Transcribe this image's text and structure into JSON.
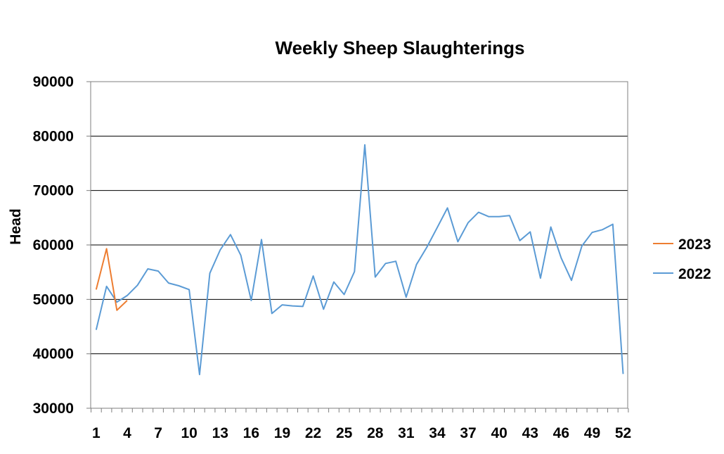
{
  "chart_data": {
    "type": "line",
    "title": "Weekly Sheep Slaughterings",
    "xlabel": "",
    "ylabel": "Head",
    "ylim": [
      30000,
      90000
    ],
    "yticks": [
      30000,
      40000,
      50000,
      60000,
      70000,
      80000,
      90000
    ],
    "xlim": [
      1,
      52
    ],
    "xticks": [
      1,
      4,
      7,
      10,
      13,
      16,
      19,
      22,
      25,
      28,
      31,
      34,
      37,
      40,
      43,
      46,
      49,
      52
    ],
    "grid": "horizontal",
    "legend_position": "right",
    "series": [
      {
        "name": "2023",
        "color": "#ED7D31",
        "x": [
          1,
          2,
          3,
          4
        ],
        "values": [
          51800,
          59300,
          48000,
          49800
        ]
      },
      {
        "name": "2022",
        "color": "#5B9BD5",
        "x": [
          1,
          2,
          3,
          4,
          5,
          6,
          7,
          8,
          9,
          10,
          11,
          12,
          13,
          14,
          15,
          16,
          17,
          18,
          19,
          20,
          21,
          22,
          23,
          24,
          25,
          26,
          27,
          28,
          29,
          30,
          31,
          32,
          33,
          34,
          35,
          36,
          37,
          38,
          39,
          40,
          41,
          42,
          43,
          44,
          45,
          46,
          47,
          48,
          49,
          50,
          51,
          52
        ],
        "values": [
          44400,
          52400,
          49500,
          50700,
          52600,
          55600,
          55200,
          53000,
          52500,
          51800,
          36200,
          54800,
          59100,
          61900,
          58100,
          49800,
          61000,
          47400,
          49000,
          48800,
          48700,
          54300,
          48200,
          53200,
          50900,
          55100,
          78400,
          54100,
          56600,
          57000,
          50400,
          56400,
          59600,
          63200,
          66800,
          60600,
          64100,
          66000,
          65200,
          65200,
          65400,
          60800,
          62400,
          53900,
          63300,
          57600,
          53500,
          59800,
          62300,
          62800,
          63800,
          36300
        ]
      }
    ]
  }
}
